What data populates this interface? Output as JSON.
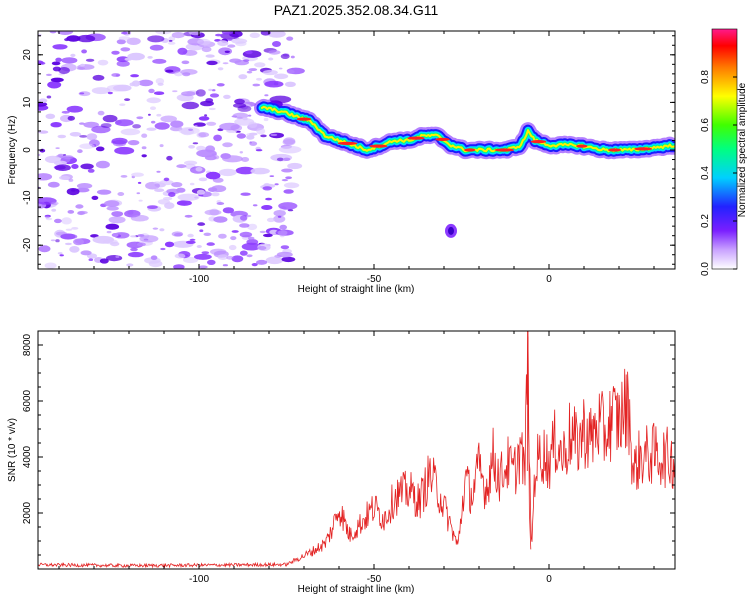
{
  "title": "PAZ1.2025.352.08.34.G11",
  "colors": {
    "snr_line": "#e32222",
    "axis": "#000000",
    "noise": "#9b40ff"
  },
  "chart_data": [
    {
      "type": "heatmap",
      "name": "spectrogram",
      "xlabel": "Height of straight line (km)",
      "ylabel": "Frequency (Hz)",
      "xlim": [
        -146,
        36
      ],
      "ylim": [
        -25,
        25
      ],
      "xticks": [
        -100,
        -50,
        0
      ],
      "xtick_labels": [
        "-100",
        "-50",
        "0"
      ],
      "yticks": [
        20,
        10,
        0,
        -10,
        -20
      ],
      "ytick_labels": [
        "20",
        "10",
        "0",
        "-10",
        "-20"
      ],
      "signal_ridge": {
        "x": [
          -82,
          -76,
          -72,
          -68,
          -64,
          -60,
          -56,
          -52,
          -48,
          -44,
          -40,
          -36,
          -32,
          -28,
          -24,
          -20,
          -16,
          -12,
          -8,
          -6,
          -4,
          0,
          8,
          16,
          24,
          36
        ],
        "freq_hz": [
          9,
          8,
          7,
          6,
          3,
          2,
          1,
          0,
          1,
          2,
          2,
          3,
          3,
          1,
          0,
          0,
          0,
          0,
          1,
          4,
          2,
          1,
          1,
          0,
          0,
          1
        ]
      },
      "isolated_blob": {
        "x": -28,
        "freq_hz": -17
      },
      "noise_region_x": [
        -146,
        -74
      ],
      "colorbar": {
        "label": "Normalized spectral amplitude",
        "ticks": [
          0.0,
          0.2,
          0.4,
          0.6,
          0.8
        ],
        "tick_labels": [
          "0.0",
          "0.2",
          "0.4",
          "0.6",
          "0.8"
        ],
        "range": [
          0,
          1
        ]
      }
    },
    {
      "type": "line",
      "name": "snr",
      "xlabel": "Height of straight line (km)",
      "ylabel": "SNR (10 * v/v)",
      "xlim": [
        -146,
        36
      ],
      "ylim": [
        0,
        8500
      ],
      "xticks": [
        -100,
        -50,
        0
      ],
      "xtick_labels": [
        "-100",
        "-50",
        "0"
      ],
      "yticks": [
        2000,
        4000,
        6000,
        8000
      ],
      "ytick_labels": [
        "2000",
        "4000",
        "6000",
        "8000"
      ],
      "series": [
        {
          "name": "SNR",
          "x": [
            -146,
            -120,
            -95,
            -75,
            -72,
            -68,
            -64,
            -62,
            -60,
            -57,
            -54,
            -50,
            -47,
            -44,
            -40,
            -37,
            -34,
            -31,
            -28,
            -26,
            -24,
            -22,
            -20,
            -18,
            -16,
            -14,
            -12,
            -10,
            -8,
            -7,
            -6,
            -5.5,
            -5,
            -4,
            -2,
            0,
            2,
            4,
            6,
            8,
            10,
            12,
            14,
            16,
            18,
            20,
            22,
            23,
            24,
            26,
            30,
            36
          ],
          "y": [
            150,
            120,
            140,
            160,
            350,
            600,
            900,
            1400,
            2200,
            1200,
            1600,
            2200,
            1800,
            2600,
            2800,
            2400,
            3400,
            2600,
            1500,
            800,
            3200,
            2600,
            3600,
            2800,
            4000,
            3200,
            3800,
            3400,
            4400,
            3200,
            8300,
            3000,
            700,
            3600,
            4200,
            3800,
            4600,
            4000,
            4800,
            4400,
            5000,
            4600,
            5200,
            4800,
            5400,
            5300,
            5800,
            5600,
            3400,
            4000,
            4100,
            3900
          ]
        }
      ]
    }
  ]
}
